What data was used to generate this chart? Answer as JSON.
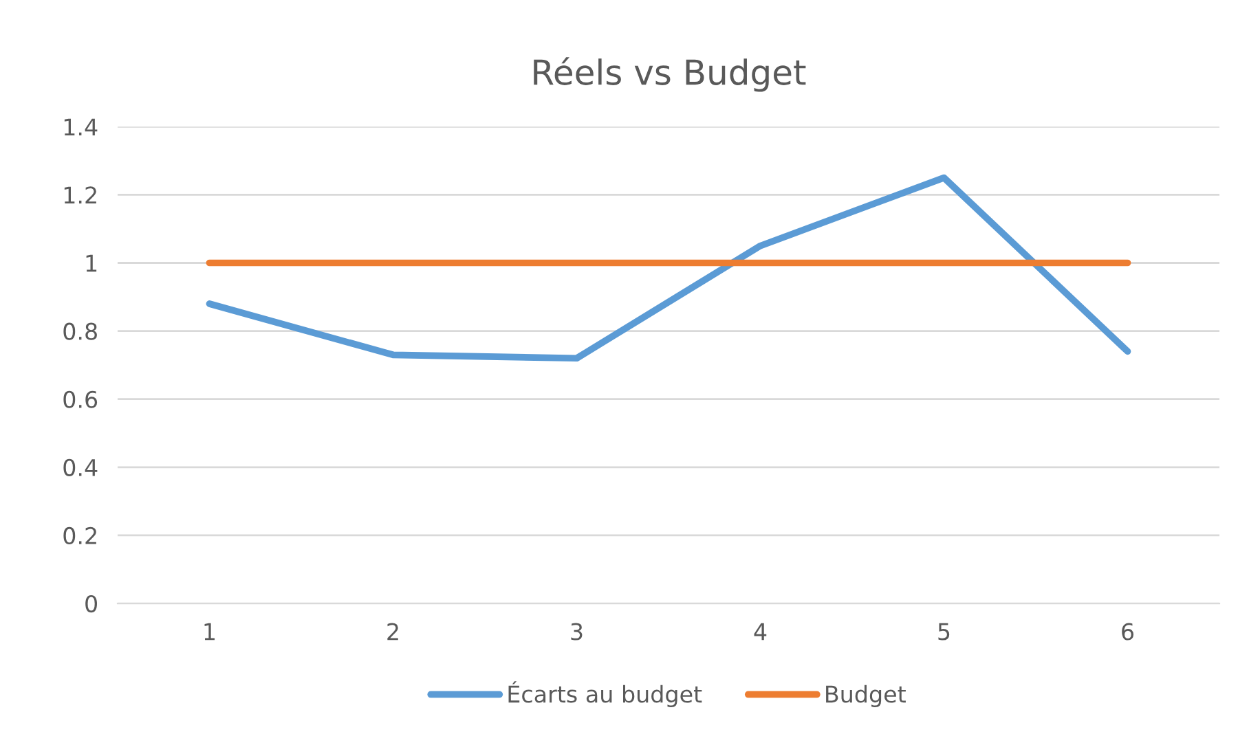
{
  "chart_data": {
    "type": "line",
    "title": "Réels vs Budget",
    "categories": [
      "1",
      "2",
      "3",
      "4",
      "5",
      "6"
    ],
    "series": [
      {
        "name": "Écarts au budget",
        "color": "#5b9bd5",
        "values": [
          0.88,
          0.73,
          0.72,
          1.05,
          1.25,
          0.74
        ]
      },
      {
        "name": "Budget",
        "color": "#ed7d31",
        "values": [
          1,
          1,
          1,
          1,
          1,
          1
        ]
      }
    ],
    "ylim": [
      0,
      1.4
    ],
    "yticks": [
      0,
      {
        "value": 0.2,
        "label": "0.2"
      },
      {
        "value": 0.4,
        "label": "0.4"
      },
      {
        "value": 0.6,
        "label": "0.6"
      },
      {
        "value": 0.8,
        "label": "0.8"
      },
      1,
      {
        "value": 1.2,
        "label": "1.2"
      },
      {
        "value": 1.4,
        "label": "1.4"
      }
    ],
    "grid": "y",
    "legend": "bottom",
    "marker": "none",
    "line_style": "solid"
  }
}
